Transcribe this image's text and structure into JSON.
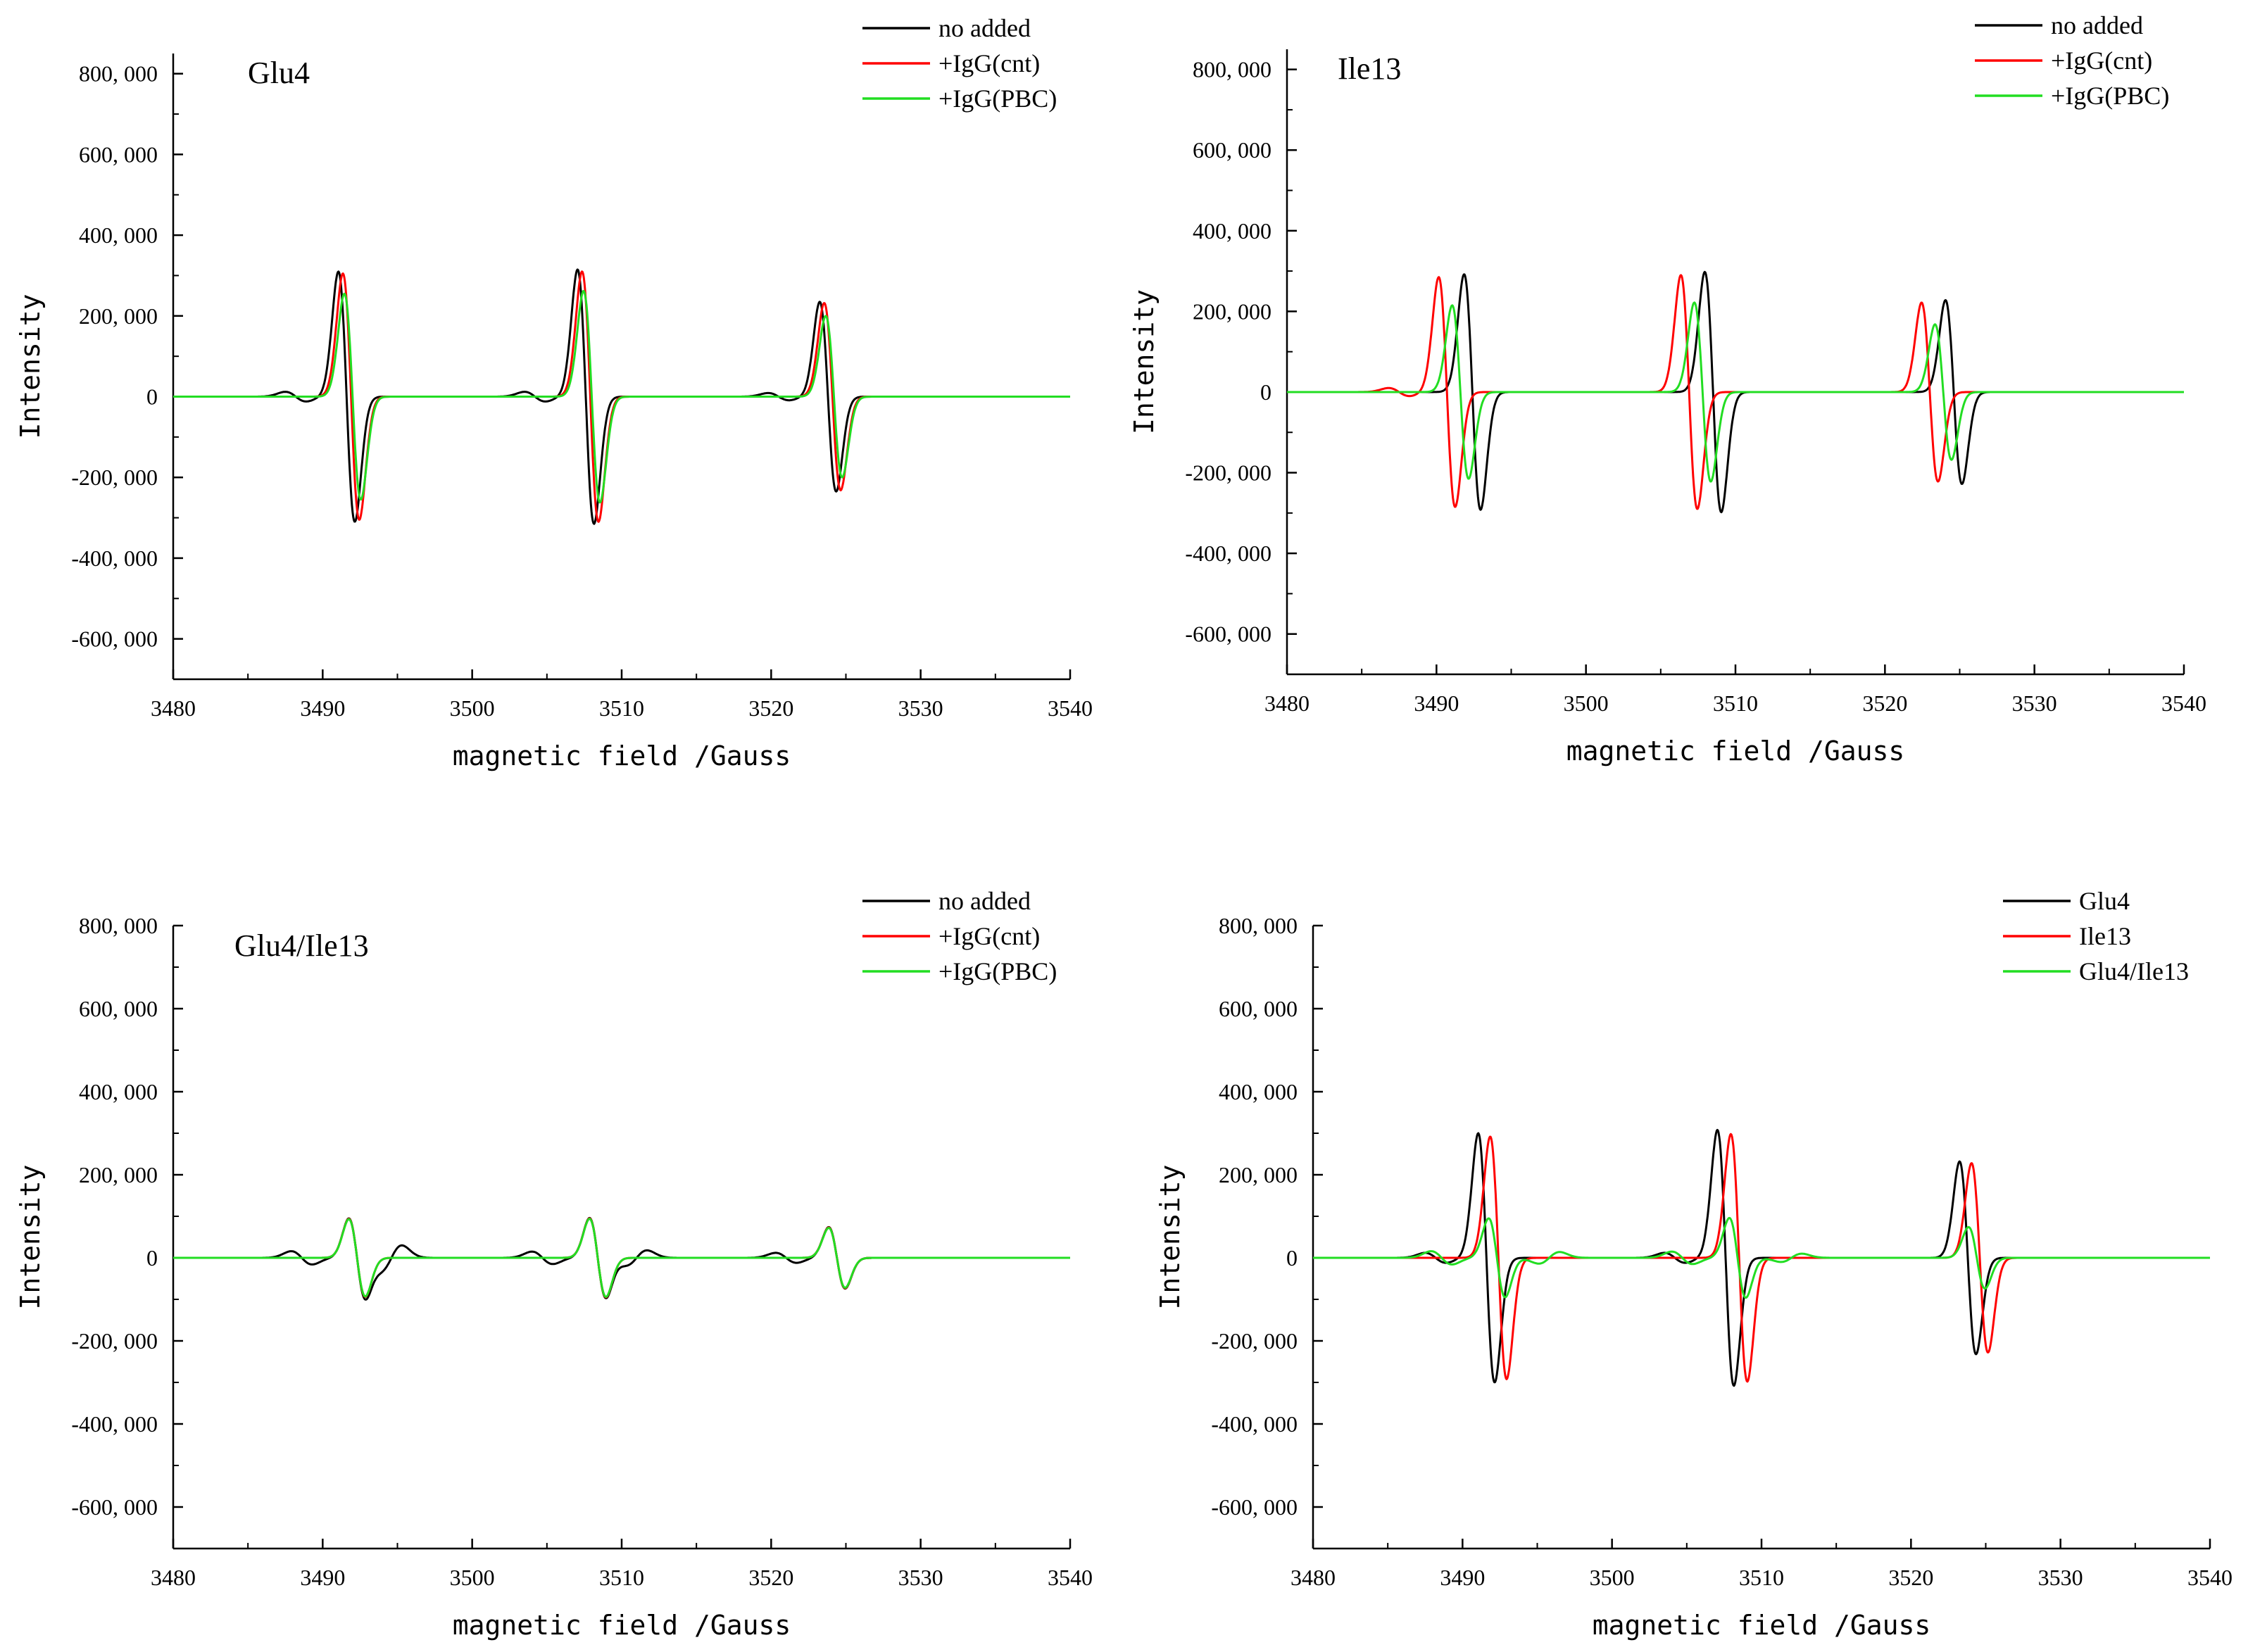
{
  "chart_data": [
    {
      "type": "line",
      "title": "Glu4",
      "xlabel": "magnetic field /Gauss",
      "ylabel": "Intensity",
      "xlim": [
        3480,
        3540
      ],
      "ylim": [
        -700000,
        850000
      ],
      "xticks": [
        3480,
        3490,
        3500,
        3510,
        3520,
        3530,
        3540
      ],
      "yticks": [
        -600000,
        -400000,
        -200000,
        0,
        200000,
        400000,
        600000,
        800000
      ],
      "ytick_labels": [
        "-600, 000",
        "-400, 000",
        "-200, 000",
        "0",
        "200, 000",
        "400, 000",
        "600, 000",
        "800, 000"
      ],
      "legend": "top-right",
      "series": [
        {
          "name": "no added",
          "color": "#000000",
          "peaks": [
            {
              "center": 3491.6,
              "amp": 310000
            },
            {
              "center": 3507.6,
              "amp": 315000
            },
            {
              "center": 3523.8,
              "amp": 235000
            }
          ],
          "satellites": [
            {
              "center": 3488.2,
              "amp": 12000
            },
            {
              "center": 3504.2,
              "amp": 12000
            },
            {
              "center": 3520.5,
              "amp": 9000
            }
          ]
        },
        {
          "name": "+IgG(cnt)",
          "color": "#ff0000",
          "peaks": [
            {
              "center": 3491.9,
              "amp": 305000
            },
            {
              "center": 3507.9,
              "amp": 310000
            },
            {
              "center": 3524.1,
              "amp": 232000
            }
          ],
          "satellites": []
        },
        {
          "name": "+IgG(PBC)",
          "color": "#22dd22",
          "peaks": [
            {
              "center": 3492.0,
              "amp": 255000
            },
            {
              "center": 3508.0,
              "amp": 262000
            },
            {
              "center": 3524.2,
              "amp": 200000
            }
          ],
          "satellites": []
        }
      ]
    },
    {
      "type": "line",
      "title": "Ile13",
      "xlabel": "magnetic field /Gauss",
      "ylabel": "Intensity",
      "xlim": [
        3480,
        3540
      ],
      "ylim": [
        -700000,
        850000
      ],
      "xticks": [
        3480,
        3490,
        3500,
        3510,
        3520,
        3530,
        3540
      ],
      "yticks": [
        -600000,
        -400000,
        -200000,
        0,
        200000,
        400000,
        600000,
        800000
      ],
      "ytick_labels": [
        "-600, 000",
        "-400, 000",
        "-200, 000",
        "0",
        "200, 000",
        "400, 000",
        "600, 000",
        "800, 000"
      ],
      "legend": "top-right",
      "series": [
        {
          "name": "no added",
          "color": "#000000",
          "peaks": [
            {
              "center": 3492.4,
              "amp": 292000
            },
            {
              "center": 3508.5,
              "amp": 298000
            },
            {
              "center": 3524.6,
              "amp": 228000
            }
          ],
          "satellites": []
        },
        {
          "name": "+IgG(cnt)",
          "color": "#ff0000",
          "peaks": [
            {
              "center": 3490.7,
              "amp": 285000
            },
            {
              "center": 3506.9,
              "amp": 290000
            },
            {
              "center": 3523.0,
              "amp": 222000
            }
          ],
          "satellites": [
            {
              "center": 3487.5,
              "amp": 10000
            }
          ]
        },
        {
          "name": "+IgG(PBC)",
          "color": "#22dd22",
          "peaks": [
            {
              "center": 3491.6,
              "amp": 215000
            },
            {
              "center": 3507.8,
              "amp": 222000
            },
            {
              "center": 3523.9,
              "amp": 168000
            }
          ],
          "satellites": []
        }
      ]
    },
    {
      "type": "line",
      "title": "Glu4/Ile13",
      "xlabel": "magnetic field /Gauss",
      "ylabel": "Intensity",
      "xlim": [
        3480,
        3540
      ],
      "ylim": [
        -700000,
        800000
      ],
      "xticks": [
        3480,
        3490,
        3500,
        3510,
        3520,
        3530,
        3540
      ],
      "yticks": [
        -600000,
        -400000,
        -200000,
        0,
        200000,
        400000,
        600000,
        800000
      ],
      "ytick_labels": [
        "-600, 000",
        "-400, 000",
        "-200, 000",
        "0",
        "200, 000",
        "400, 000",
        "600, 000",
        "800, 000"
      ],
      "legend": "top-right",
      "series": [
        {
          "name": "no added",
          "color": "#000000",
          "peaks": [
            {
              "center": 3492.3,
              "amp": 95000
            },
            {
              "center": 3508.4,
              "amp": 96000
            },
            {
              "center": 3524.4,
              "amp": 74000
            }
          ],
          "satellites": [
            {
              "center": 3488.6,
              "amp": 16000
            },
            {
              "center": 3494.6,
              "amp": -30000
            },
            {
              "center": 3504.7,
              "amp": 15000
            },
            {
              "center": 3511.0,
              "amp": -18000
            },
            {
              "center": 3521.0,
              "amp": 12000
            }
          ]
        },
        {
          "name": "+IgG(cnt)",
          "color": "#ff0000",
          "peaks": [
            {
              "center": 3492.3,
              "amp": 94000
            },
            {
              "center": 3508.4,
              "amp": 95000
            },
            {
              "center": 3524.4,
              "amp": 73000
            }
          ],
          "satellites": []
        },
        {
          "name": "+IgG(PBC)",
          "color": "#22dd22",
          "peaks": [
            {
              "center": 3492.3,
              "amp": 93000
            },
            {
              "center": 3508.4,
              "amp": 94000
            },
            {
              "center": 3524.4,
              "amp": 72000
            }
          ],
          "satellites": []
        }
      ]
    },
    {
      "type": "line",
      "title": "",
      "xlabel": "magnetic field /Gauss",
      "ylabel": "Intensity",
      "xlim": [
        3480,
        3540
      ],
      "ylim": [
        -700000,
        800000
      ],
      "xticks": [
        3480,
        3490,
        3500,
        3510,
        3520,
        3530,
        3540
      ],
      "yticks": [
        -600000,
        -400000,
        -200000,
        0,
        200000,
        400000,
        600000,
        800000
      ],
      "ytick_labels": [
        "-600, 000",
        "-400, 000",
        "-200, 000",
        "0",
        "200, 000",
        "400, 000",
        "600, 000",
        "800, 000"
      ],
      "legend": "top-right",
      "series": [
        {
          "name": "Glu4",
          "color": "#000000",
          "peaks": [
            {
              "center": 3491.6,
              "amp": 300000
            },
            {
              "center": 3507.6,
              "amp": 308000
            },
            {
              "center": 3523.8,
              "amp": 232000
            }
          ],
          "satellites": [
            {
              "center": 3488.2,
              "amp": 12000
            },
            {
              "center": 3504.2,
              "amp": 12000
            }
          ]
        },
        {
          "name": "Ile13",
          "color": "#ff0000",
          "peaks": [
            {
              "center": 3492.4,
              "amp": 292000
            },
            {
              "center": 3508.5,
              "amp": 298000
            },
            {
              "center": 3524.6,
              "amp": 228000
            }
          ],
          "satellites": []
        },
        {
          "name": "Glu4/Ile13",
          "color": "#22dd22",
          "peaks": [
            {
              "center": 3492.3,
              "amp": 95000
            },
            {
              "center": 3508.4,
              "amp": 96000
            },
            {
              "center": 3524.4,
              "amp": 74000
            }
          ],
          "satellites": [
            {
              "center": 3488.6,
              "amp": 16000
            },
            {
              "center": 3495.8,
              "amp": -14000
            },
            {
              "center": 3504.7,
              "amp": 15000
            },
            {
              "center": 3512.0,
              "amp": -10000
            }
          ]
        }
      ]
    }
  ]
}
